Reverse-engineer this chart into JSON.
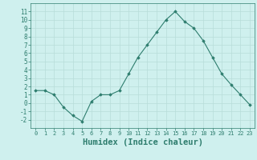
{
  "x": [
    0,
    1,
    2,
    3,
    4,
    5,
    6,
    7,
    8,
    9,
    10,
    11,
    12,
    13,
    14,
    15,
    16,
    17,
    18,
    19,
    20,
    21,
    22,
    23
  ],
  "y": [
    1.5,
    1.5,
    1.0,
    -0.5,
    -1.5,
    -2.2,
    0.2,
    1.0,
    1.0,
    1.5,
    3.5,
    5.5,
    7.0,
    8.5,
    10.0,
    11.0,
    9.8,
    9.0,
    7.5,
    5.5,
    3.5,
    2.2,
    1.0,
    -0.2
  ],
  "line_color": "#2e7d6e",
  "marker": "D",
  "marker_size": 1.8,
  "bg_color": "#cff0ee",
  "grid_color": "#b8ddd9",
  "xlabel": "Humidex (Indice chaleur)",
  "xlim": [
    -0.5,
    23.5
  ],
  "ylim": [
    -3,
    12
  ],
  "yticks": [
    -2,
    -1,
    0,
    1,
    2,
    3,
    4,
    5,
    6,
    7,
    8,
    9,
    10,
    11
  ],
  "xticks": [
    0,
    1,
    2,
    3,
    4,
    5,
    6,
    7,
    8,
    9,
    10,
    11,
    12,
    13,
    14,
    15,
    16,
    17,
    18,
    19,
    20,
    21,
    22,
    23
  ],
  "tick_label_size": 5.0,
  "xlabel_fontsize": 7.5,
  "ytick_label_size": 5.5
}
